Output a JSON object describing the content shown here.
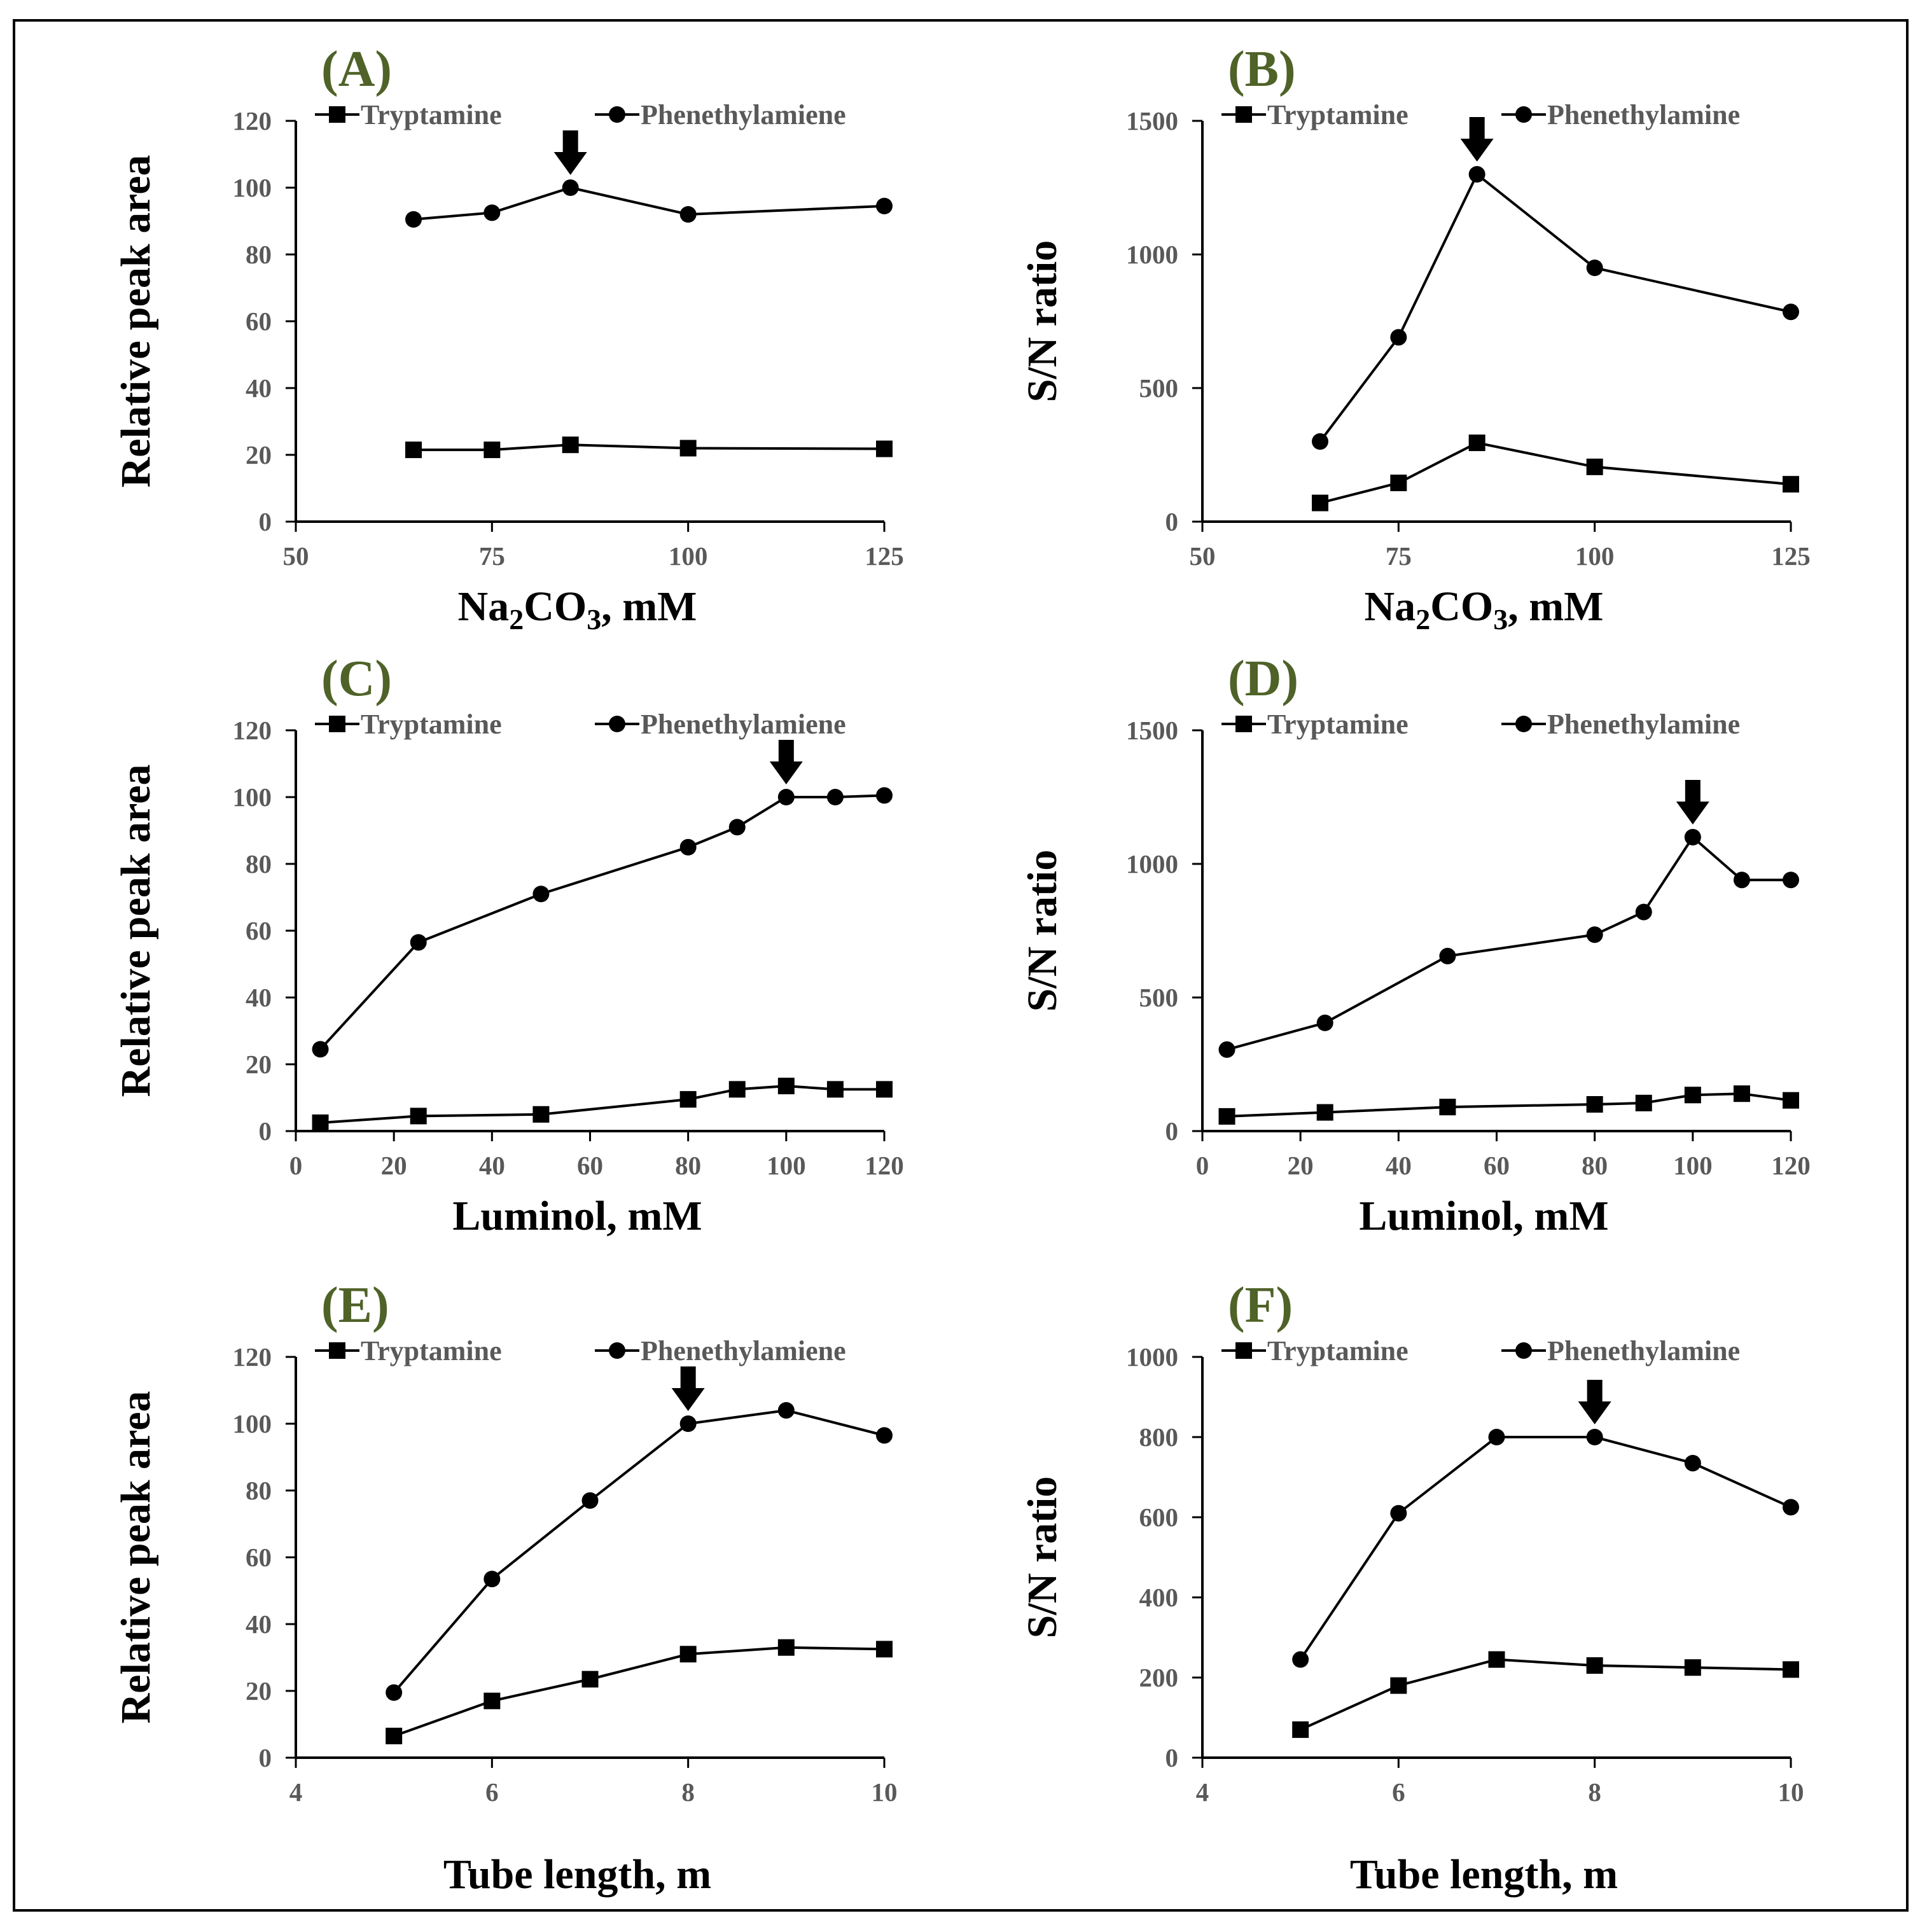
{
  "colors": {
    "panel_label": "#4f6228",
    "tick_text": "#595959",
    "line": "#000000"
  },
  "chart_data": [
    {
      "type": "line",
      "label": "(A)",
      "xlabel_html": "Na2CO3",
      "xlabel_main": "Na",
      "xlabel_sub1": "2",
      "xlabel_mid": "CO",
      "xlabel_sub2": "3",
      "xlabel_tail": ", mM",
      "ylabel": "Relative peak area",
      "xlim": [
        50,
        125
      ],
      "xticks": [
        50,
        75,
        100,
        125
      ],
      "ylim": [
        0,
        120
      ],
      "yticks": [
        0,
        20,
        40,
        60,
        80,
        100,
        120
      ],
      "arrow_at": {
        "x": 85,
        "y": 100
      },
      "series": [
        {
          "name": "Tryptamine",
          "marker": "square",
          "x": [
            65,
            75,
            85,
            100,
            125
          ],
          "y": [
            21.5,
            21.5,
            23,
            22,
            21.8
          ]
        },
        {
          "name": "Phenethylamiene",
          "marker": "circle",
          "x": [
            65,
            75,
            85,
            100,
            125
          ],
          "y": [
            90.5,
            92.5,
            100,
            92,
            94.5
          ]
        }
      ]
    },
    {
      "type": "line",
      "label": "(B)",
      "xlabel_main": "Na",
      "xlabel_sub1": "2",
      "xlabel_mid": "CO",
      "xlabel_sub2": "3",
      "xlabel_tail": ", mM",
      "ylabel": "S/N ratio",
      "xlim": [
        50,
        125
      ],
      "xticks": [
        50,
        75,
        100,
        125
      ],
      "ylim": [
        0,
        1500
      ],
      "yticks": [
        0,
        500,
        1000,
        1500
      ],
      "arrow_at": {
        "x": 85,
        "y": 1300
      },
      "series": [
        {
          "name": "Tryptamine",
          "marker": "square",
          "x": [
            65,
            75,
            85,
            100,
            125
          ],
          "y": [
            70,
            145,
            295,
            205,
            140
          ]
        },
        {
          "name": "Phenethylamine",
          "marker": "circle",
          "x": [
            65,
            75,
            85,
            100,
            125
          ],
          "y": [
            300,
            690,
            1300,
            950,
            785
          ]
        }
      ]
    },
    {
      "type": "line",
      "label": "(C)",
      "xlabel": "Luminol, mM",
      "ylabel": "Relative peak area",
      "xlim": [
        0,
        120
      ],
      "xticks": [
        0,
        20,
        40,
        60,
        80,
        100,
        120
      ],
      "ylim": [
        0,
        120
      ],
      "yticks": [
        0,
        20,
        40,
        60,
        80,
        100,
        120
      ],
      "arrow_at": {
        "x": 100,
        "y": 100
      },
      "series": [
        {
          "name": "Tryptamine",
          "marker": "square",
          "x": [
            5,
            25,
            50,
            80,
            90,
            100,
            110,
            120
          ],
          "y": [
            2.5,
            4.5,
            5,
            9.5,
            12.5,
            13.5,
            12.5,
            12.5
          ]
        },
        {
          "name": "Phenethylamiene",
          "marker": "circle",
          "x": [
            5,
            25,
            50,
            80,
            90,
            100,
            110,
            120
          ],
          "y": [
            24.5,
            56.5,
            71,
            85,
            91,
            100,
            100,
            100.5
          ]
        }
      ]
    },
    {
      "type": "line",
      "label": "(D)",
      "xlabel": "Luminol, mM",
      "ylabel": "S/N ratio",
      "xlim": [
        0,
        120
      ],
      "xticks": [
        0,
        20,
        40,
        60,
        80,
        100,
        120
      ],
      "ylim": [
        0,
        1500
      ],
      "yticks": [
        0,
        500,
        1000,
        1500
      ],
      "arrow_at": {
        "x": 100,
        "y": 1100
      },
      "series": [
        {
          "name": "Tryptamine",
          "marker": "square",
          "x": [
            5,
            25,
            50,
            80,
            90,
            100,
            110,
            120
          ],
          "y": [
            55,
            70,
            90,
            100,
            105,
            135,
            140,
            115
          ]
        },
        {
          "name": "Phenethylamine",
          "marker": "circle",
          "x": [
            5,
            25,
            50,
            80,
            90,
            100,
            110,
            120
          ],
          "y": [
            305,
            405,
            655,
            735,
            820,
            1100,
            940,
            940
          ]
        }
      ]
    },
    {
      "type": "line",
      "label": "(E)",
      "xlabel": "Tube length, m",
      "ylabel": "Relative peak area",
      "xlim": [
        4,
        10
      ],
      "xticks": [
        4,
        6,
        8,
        10
      ],
      "ylim": [
        0,
        120
      ],
      "yticks": [
        0,
        20,
        40,
        60,
        80,
        100,
        120
      ],
      "arrow_at": {
        "x": 8,
        "y": 100
      },
      "series": [
        {
          "name": "Tryptamine",
          "marker": "square",
          "x": [
            5,
            6,
            7,
            8,
            9,
            10
          ],
          "y": [
            6.5,
            17,
            23.5,
            31,
            33,
            32.5
          ]
        },
        {
          "name": "Phenethylamiene",
          "marker": "circle",
          "x": [
            5,
            6,
            7,
            8,
            9,
            10
          ],
          "y": [
            19.5,
            53.5,
            77,
            100,
            104,
            96.5
          ]
        }
      ]
    },
    {
      "type": "line",
      "label": "(F)",
      "xlabel": "Tube length, m",
      "ylabel": "S/N ratio",
      "xlim": [
        4,
        10
      ],
      "xticks": [
        4,
        6,
        8,
        10
      ],
      "ylim": [
        0,
        1000
      ],
      "yticks": [
        0,
        200,
        400,
        600,
        800,
        1000
      ],
      "arrow_at": {
        "x": 8,
        "y": 800
      },
      "series": [
        {
          "name": "Tryptamine",
          "marker": "square",
          "x": [
            5,
            6,
            7,
            8,
            9,
            10
          ],
          "y": [
            70,
            180,
            245,
            230,
            225,
            220
          ]
        },
        {
          "name": "Phenethylamine",
          "marker": "circle",
          "x": [
            5,
            6,
            7,
            8,
            9,
            10
          ],
          "y": [
            245,
            610,
            800,
            800,
            735,
            625
          ]
        }
      ]
    }
  ]
}
